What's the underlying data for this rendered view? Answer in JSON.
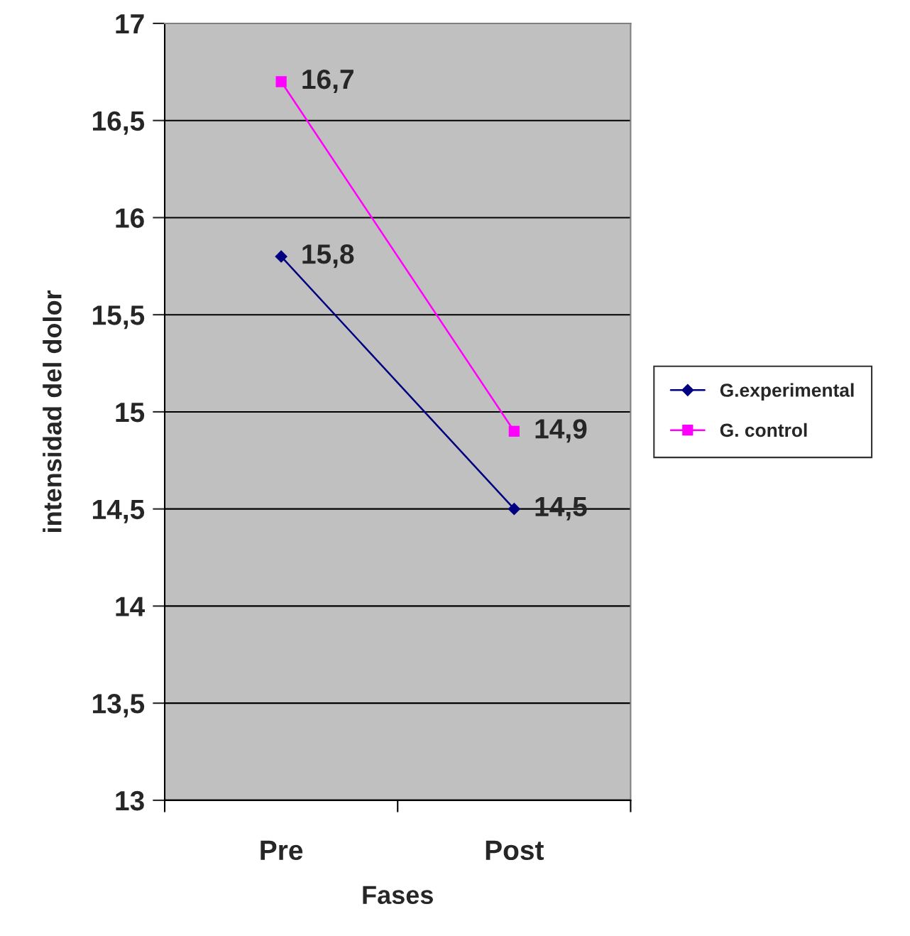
{
  "chart_data": {
    "type": "line",
    "xlabel": "Fases",
    "ylabel": "intensidad del dolor",
    "categories": [
      "Pre",
      "Post"
    ],
    "series": [
      {
        "name": "G.experimental",
        "color": "#000080",
        "marker": "diamond",
        "values": [
          15.8,
          14.5
        ],
        "value_labels": [
          "15,8",
          "14,5"
        ]
      },
      {
        "name": "G. control",
        "color": "#ff00ff",
        "marker": "square",
        "values": [
          16.7,
          14.9
        ],
        "value_labels": [
          "16,7",
          "14,9"
        ]
      }
    ],
    "ylim": [
      13,
      17
    ],
    "yticks": [
      13,
      {
        "value": 13.5,
        "label": "13,5"
      },
      14,
      {
        "value": 14.5,
        "label": "14,5"
      },
      15,
      {
        "value": 15.5,
        "label": "15,5"
      },
      16,
      {
        "value": 16.5,
        "label": "16,5"
      },
      17
    ],
    "grid": "y",
    "legend": "right"
  }
}
